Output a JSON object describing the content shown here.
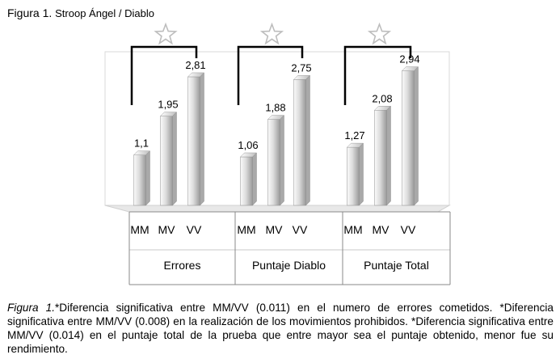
{
  "figure": {
    "label": "Figura 1.",
    "title": "Stroop Ángel / Diablo"
  },
  "chart_data": {
    "type": "bar",
    "groups": [
      "Errores",
      "Puntaje Diablo",
      "Puntaje Total"
    ],
    "categories": [
      "MM",
      "MV",
      "VV"
    ],
    "series": [
      {
        "group": "Errores",
        "values": [
          1.1,
          1.95,
          2.81
        ],
        "labels": [
          "1,1",
          "1,95",
          "2,81"
        ]
      },
      {
        "group": "Puntaje Diablo",
        "values": [
          1.06,
          1.88,
          2.75
        ],
        "labels": [
          "1,06",
          "1,88",
          "2,75"
        ]
      },
      {
        "group": "Puntaje Total",
        "values": [
          1.27,
          2.08,
          2.94
        ],
        "labels": [
          "1,27",
          "2,08",
          "2,94"
        ]
      }
    ],
    "significance_marker": "star",
    "ylim": [
      0,
      3.3
    ],
    "grid": false,
    "colors": {
      "bar_light": "#f2f2f2",
      "bar_dark": "#9e9e9e",
      "bracket": "#000000",
      "star": "#bdbdbd"
    }
  },
  "caption": {
    "fig_ref": "Figura 1.",
    "text": "*Diferencia significativa entre MM/VV (0.011) en el numero de errores cometidos. *Diferencia significativa entre MM/VV (0.008) en la realización de los movimientos prohibidos. *Diferencia significativa entre MM/VV (0.014) en el puntaje total de la prueba que entre mayor sea el puntaje obtenido, menor fue su rendimiento."
  }
}
